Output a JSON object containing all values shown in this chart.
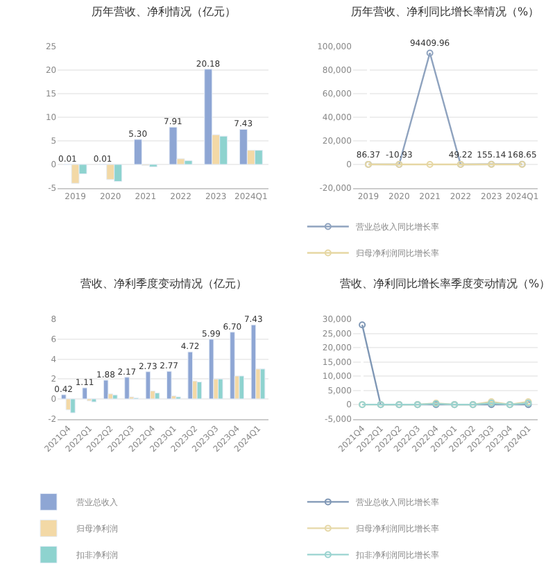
{
  "chart_data": [
    {
      "type": "bar",
      "title": "历年营收、净利情况（亿元）",
      "categories": [
        "2019",
        "2020",
        "2021",
        "2022",
        "2023",
        "2024Q1"
      ],
      "series": [
        {
          "color": "#8ea6d4",
          "values": [
            0.01,
            0.01,
            5.3,
            7.91,
            20.18,
            7.43
          ],
          "value_labels": [
            "0.01",
            "0.01",
            "5.30",
            "7.91",
            "20.18",
            "7.43"
          ]
        },
        {
          "color": "#f3d9a6",
          "values": [
            -4,
            -3.2,
            -0.2,
            1.2,
            6.3,
            3.0
          ]
        },
        {
          "color": "#8ed3cf",
          "values": [
            -2,
            -3.6,
            -0.5,
            0.8,
            6.0,
            3.0
          ]
        }
      ],
      "ylim": [
        -5,
        25
      ],
      "yticks": [
        -5,
        0,
        5,
        10,
        15,
        20,
        25
      ],
      "grid": "y",
      "legend": false
    },
    {
      "type": "line",
      "title": "历年营收、净利同比增长率情况（%）",
      "categories": [
        "2019",
        "2020",
        "2021",
        "2022",
        "2023",
        "2024Q1"
      ],
      "series": [
        {
          "name": "营业总收入同比增长率",
          "color": "#8fa3bf",
          "values": [
            86.37,
            -10.93,
            94409.96,
            49.22,
            155.14,
            168.65
          ],
          "value_labels": [
            "86.37",
            "-10.93",
            "94409.96",
            "49.22",
            "155.14",
            "168.65"
          ]
        },
        {
          "name": "归母净利润同比增长率",
          "color": "#e6d7a3",
          "values": [
            0,
            0,
            0,
            0,
            0,
            0
          ]
        }
      ],
      "ylim": [
        -20000,
        100000
      ],
      "yticks": [
        {
          "value": -20000,
          "label": "-20,000"
        },
        0,
        {
          "value": 20000,
          "label": "20,000"
        },
        {
          "value": 40000,
          "label": "40,000"
        },
        {
          "value": 60000,
          "label": "60,000"
        },
        {
          "value": 80000,
          "label": "80,000"
        },
        {
          "value": 100000,
          "label": "100,000"
        }
      ],
      "grid": "y",
      "legend": "bottom",
      "marker": "circle"
    },
    {
      "type": "bar",
      "title": "营收、净利季度变动情况（亿元）",
      "categories": [
        "2021Q4",
        "2022Q1",
        "2022Q2",
        "2022Q3",
        "2022Q4",
        "2023Q1",
        "2023Q2",
        "2023Q3",
        "2023Q4",
        "2024Q1"
      ],
      "series": [
        {
          "name": "营业总收入",
          "color": "#8ea6d4",
          "values": [
            0.42,
            1.11,
            1.88,
            2.17,
            2.73,
            2.77,
            4.72,
            5.99,
            6.7,
            7.43
          ],
          "value_labels": [
            "0.42",
            "1.11",
            "1.88",
            "2.17",
            "2.73",
            "2.77",
            "4.72",
            "5.99",
            "6.70",
            "7.43"
          ]
        },
        {
          "name": "归母净利润",
          "color": "#f3d9a6",
          "values": [
            -1.1,
            -0.2,
            0.5,
            0.2,
            0.8,
            0.3,
            1.8,
            2.0,
            2.3,
            3.0
          ]
        },
        {
          "name": "扣非净利润",
          "color": "#8ed3cf",
          "values": [
            -1.4,
            -0.3,
            0.4,
            0.1,
            0.6,
            0.2,
            1.7,
            2.0,
            2.3,
            3.0
          ]
        }
      ],
      "ylim": [
        -2,
        8
      ],
      "yticks": [
        -2,
        0,
        2,
        4,
        6,
        8
      ],
      "grid": "y",
      "legend": "bottom"
    },
    {
      "type": "line",
      "title": "营收、净利同比增长率季度变动情况（%）",
      "categories": [
        "2021Q4",
        "2022Q1",
        "2022Q2",
        "2022Q3",
        "2022Q4",
        "2023Q1",
        "2023Q2",
        "2023Q3",
        "2023Q4",
        "2024Q1"
      ],
      "series": [
        {
          "name": "营业总收入同比增长率",
          "color": "#7f97b5",
          "values": [
            28000,
            0,
            0,
            0,
            0,
            0,
            0,
            0,
            0,
            0
          ]
        },
        {
          "name": "归母净利润同比增长率",
          "color": "#e6d8a8",
          "values": [
            0,
            0,
            0,
            0,
            500,
            0,
            0,
            1000,
            0,
            1000
          ]
        },
        {
          "name": "扣非净利润同比增长率",
          "color": "#9ad3d0",
          "values": [
            0,
            0,
            0,
            0,
            300,
            0,
            0,
            500,
            0,
            500
          ]
        }
      ],
      "ylim": [
        -5000,
        30000
      ],
      "yticks": [
        {
          "value": -5000,
          "label": "-5,000"
        },
        0,
        {
          "value": 5000,
          "label": "5,000"
        },
        {
          "value": 10000,
          "label": "10,000"
        },
        {
          "value": 15000,
          "label": "15,000"
        },
        {
          "value": 20000,
          "label": "20,000"
        },
        {
          "value": 25000,
          "label": "25,000"
        },
        {
          "value": 30000,
          "label": "30,000"
        }
      ],
      "grid": "y",
      "legend": "bottom",
      "marker": "circle"
    }
  ]
}
